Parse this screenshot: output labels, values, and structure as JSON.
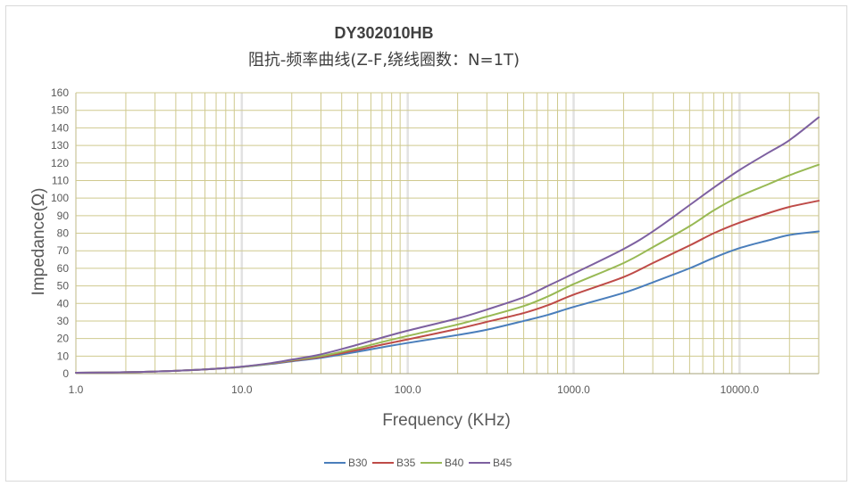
{
  "chart_data": {
    "type": "line",
    "title": "DY302010HB",
    "subtitle": "阻抗-频率曲线(Z-F,绕线圈数：N=1T)",
    "xlabel": "Frequency (KHz)",
    "ylabel": "Impedance(Ω)",
    "x_scale": "log",
    "xlim": [
      1,
      30000
    ],
    "ylim": [
      0,
      160
    ],
    "y_ticks": [
      0,
      10,
      20,
      30,
      40,
      50,
      60,
      70,
      80,
      90,
      100,
      110,
      120,
      130,
      140,
      150,
      160
    ],
    "x_tick_labels": [
      "1.0",
      "10.0",
      "100.0",
      "1000.0",
      "10000.0"
    ],
    "grid": true,
    "legend_position": "bottom",
    "x": [
      1,
      2,
      3,
      5,
      7,
      10,
      15,
      20,
      30,
      50,
      70,
      100,
      200,
      300,
      500,
      700,
      1000,
      2000,
      3000,
      5000,
      7000,
      10000,
      15000,
      20000,
      30000
    ],
    "series": [
      {
        "name": "B30",
        "color": "#4a7ebb",
        "values": [
          0.5,
          0.8,
          1.2,
          2.0,
          2.8,
          3.8,
          5.5,
          7.0,
          9.0,
          12.5,
          15.0,
          17.5,
          22.0,
          25.0,
          30.0,
          33.5,
          38.0,
          46.0,
          52.0,
          60.0,
          66.0,
          71.5,
          76.0,
          79.0,
          81.0
        ]
      },
      {
        "name": "B35",
        "color": "#be4b48",
        "values": [
          0.5,
          0.8,
          1.2,
          2.0,
          2.8,
          3.9,
          5.7,
          7.3,
          9.5,
          13.5,
          16.5,
          19.5,
          25.5,
          29.5,
          34.5,
          39.0,
          45.0,
          55.0,
          63.0,
          73.0,
          80.0,
          86.0,
          91.5,
          95.0,
          98.5
        ]
      },
      {
        "name": "B40",
        "color": "#98b954",
        "values": [
          0.5,
          0.8,
          1.2,
          2.0,
          2.8,
          3.9,
          5.8,
          7.6,
          10.0,
          14.5,
          18.0,
          21.5,
          28.0,
          32.5,
          38.5,
          44.0,
          51.0,
          63.0,
          72.0,
          84.0,
          93.0,
          101.0,
          108.0,
          113.0,
          119.0
        ]
      },
      {
        "name": "B45",
        "color": "#7d60a0",
        "values": [
          0.5,
          0.8,
          1.2,
          2.0,
          2.8,
          4.0,
          6.0,
          8.0,
          11.0,
          16.5,
          20.5,
          24.5,
          31.5,
          36.5,
          43.5,
          50.0,
          57.0,
          71.0,
          81.0,
          96.0,
          106.0,
          116.0,
          126.0,
          133.0,
          146.0
        ]
      }
    ]
  }
}
